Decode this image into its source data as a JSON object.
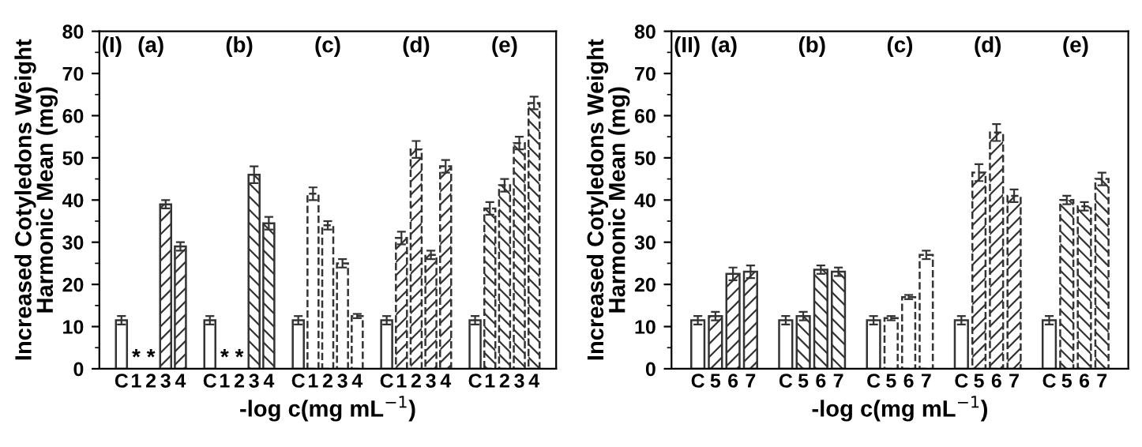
{
  "chart_data": [
    {
      "type": "bar",
      "xlabel": "-log c(mg mL$^{−1}$)",
      "ylabel": "Increased Cotyledons Weight\nHarmonic Mean (mg)",
      "ylim": [
        0,
        80
      ],
      "yticks": [
        0,
        10,
        20,
        30,
        40,
        50,
        60,
        70,
        80
      ],
      "grid": false,
      "categories": [
        "C",
        "1",
        "2",
        "3",
        "4",
        null,
        "C",
        "1",
        "2",
        "3",
        "4",
        null,
        "C",
        "1",
        "2",
        "3",
        "4",
        null,
        "C",
        "1",
        "2",
        "3",
        "4",
        null,
        "C",
        "1",
        "2",
        "3",
        "4"
      ],
      "series": [
        {
          "color": "#ffffff",
          "line_style": "solid",
          "values": [
            11.5,
            null,
            null,
            null,
            null,
            null,
            11.5,
            null,
            null,
            null,
            null,
            null,
            11.5,
            null,
            null,
            null,
            null,
            null,
            11.5,
            null,
            null,
            null,
            null,
            null,
            11.5,
            null,
            null,
            null,
            null
          ],
          "errors": [
            1,
            null,
            null,
            null,
            null,
            null,
            1,
            null,
            null,
            null,
            null,
            null,
            1,
            null,
            null,
            null,
            null,
            null,
            1,
            null,
            null,
            null,
            null,
            null,
            1,
            null,
            null,
            null,
            null
          ]
        },
        {
          "color": "#333333",
          "line_style": "solid",
          "values": [
            null,
            null,
            null,
            39,
            29,
            null,
            null,
            null,
            null,
            null,
            null,
            null,
            null,
            null,
            null,
            null,
            null,
            null,
            null,
            null,
            null,
            null,
            null,
            null,
            null,
            null,
            null,
            null,
            null
          ],
          "errors": [
            null,
            null,
            null,
            1,
            1,
            null,
            null,
            null,
            null,
            null,
            null,
            null,
            null,
            null,
            null,
            null,
            null,
            null,
            null,
            null,
            null,
            null,
            null,
            null,
            null,
            null,
            null,
            null,
            null
          ]
        },
        {
          "color": "#333333",
          "line_style": "solid",
          "values": [
            null,
            null,
            null,
            null,
            null,
            null,
            null,
            null,
            null,
            46,
            34.5,
            null,
            null,
            null,
            null,
            null,
            null,
            null,
            null,
            null,
            null,
            null,
            null,
            null,
            null,
            null,
            null,
            null,
            null
          ],
          "errors": [
            null,
            null,
            null,
            null,
            null,
            null,
            null,
            null,
            null,
            2,
            1.5,
            null,
            null,
            null,
            null,
            null,
            null,
            null,
            null,
            null,
            null,
            null,
            null,
            null,
            null,
            null,
            null,
            null,
            null
          ]
        },
        {
          "color": "#ffffff",
          "line_style": "dashed",
          "values": [
            null,
            null,
            null,
            null,
            null,
            null,
            null,
            null,
            null,
            null,
            null,
            null,
            null,
            41.5,
            34,
            25,
            12.5,
            null,
            null,
            null,
            null,
            null,
            null,
            null,
            null,
            null,
            null,
            null,
            null
          ],
          "errors": [
            null,
            null,
            null,
            null,
            null,
            null,
            null,
            null,
            null,
            null,
            null,
            null,
            null,
            1.5,
            1,
            1,
            0.5,
            null,
            null,
            null,
            null,
            null,
            null,
            null,
            null,
            null,
            null,
            null,
            null
          ]
        },
        {
          "color": "#333333",
          "line_style": "dashed",
          "values": [
            null,
            null,
            null,
            null,
            null,
            null,
            null,
            null,
            null,
            null,
            null,
            null,
            null,
            null,
            null,
            null,
            null,
            null,
            null,
            31,
            52,
            27,
            48,
            null,
            null,
            null,
            null,
            null,
            null
          ],
          "errors": [
            null,
            null,
            null,
            null,
            null,
            null,
            null,
            null,
            null,
            null,
            null,
            null,
            null,
            null,
            null,
            null,
            null,
            null,
            null,
            1.5,
            2,
            1,
            1.5,
            null,
            null,
            null,
            null,
            null,
            null
          ]
        },
        {
          "color": "#333333",
          "line_style": "dashed",
          "values": [
            null,
            null,
            null,
            null,
            null,
            null,
            null,
            null,
            null,
            null,
            null,
            null,
            null,
            null,
            null,
            null,
            null,
            null,
            null,
            null,
            null,
            null,
            null,
            null,
            null,
            38,
            43.5,
            53.5,
            63
          ],
          "errors": [
            null,
            null,
            null,
            null,
            null,
            null,
            null,
            null,
            null,
            null,
            null,
            null,
            null,
            null,
            null,
            null,
            null,
            null,
            null,
            null,
            null,
            null,
            null,
            null,
            null,
            1.5,
            1.5,
            1.5,
            1.5
          ]
        }
      ],
      "annotations": [
        "(I)",
        "(a)",
        "(b)",
        "(c)",
        "(d)",
        "(e)",
        "*",
        "*",
        "*",
        "*"
      ]
    },
    {
      "type": "bar",
      "xlabel": "-log c(mg mL$^{−1}$)",
      "ylabel": "Increased Cotyledons Weight\nHarmonic Mean (mg)",
      "ylim": [
        0,
        80
      ],
      "yticks": [
        0,
        10,
        20,
        30,
        40,
        50,
        60,
        70,
        80
      ],
      "grid": false,
      "categories": [
        "C",
        "5",
        "6",
        "7",
        null,
        "C",
        "5",
        "6",
        "7",
        null,
        "C",
        "5",
        "6",
        "7",
        null,
        "C",
        "5",
        "6",
        "7",
        null,
        "C",
        "5",
        "6",
        "7"
      ],
      "series": [
        {
          "color": "#ffffff",
          "line_style": "solid",
          "values": [
            11.5,
            null,
            null,
            null,
            null,
            11.5,
            null,
            null,
            null,
            null,
            11.5,
            null,
            null,
            null,
            null,
            11.5,
            null,
            null,
            null,
            null,
            11.5,
            null,
            null,
            null
          ],
          "errors": [
            1,
            null,
            null,
            null,
            null,
            1,
            null,
            null,
            null,
            null,
            1,
            null,
            null,
            null,
            null,
            1,
            null,
            null,
            null,
            null,
            1,
            null,
            null,
            null
          ]
        },
        {
          "color": "#333333",
          "line_style": "solid",
          "values": [
            null,
            12.5,
            22.5,
            23,
            null,
            null,
            null,
            null,
            null,
            null,
            null,
            null,
            null,
            null,
            null,
            null,
            null,
            null,
            null,
            null,
            null,
            null,
            null,
            null
          ],
          "errors": [
            null,
            1,
            1.5,
            1.5,
            null,
            null,
            null,
            null,
            null,
            null,
            null,
            null,
            null,
            null,
            null,
            null,
            null,
            null,
            null,
            null,
            null,
            null,
            null,
            null
          ]
        },
        {
          "color": "#333333",
          "line_style": "solid",
          "values": [
            null,
            null,
            null,
            null,
            null,
            null,
            12.5,
            23.5,
            23,
            null,
            null,
            null,
            null,
            null,
            null,
            null,
            null,
            null,
            null,
            null,
            null,
            null,
            null,
            null
          ],
          "errors": [
            null,
            null,
            null,
            null,
            null,
            null,
            1,
            1,
            1,
            null,
            null,
            null,
            null,
            null,
            null,
            null,
            null,
            null,
            null,
            null,
            null,
            null,
            null,
            null
          ]
        },
        {
          "color": "#ffffff",
          "line_style": "dashed",
          "values": [
            null,
            null,
            null,
            null,
            null,
            null,
            null,
            null,
            null,
            null,
            null,
            12,
            17,
            27,
            null,
            null,
            null,
            null,
            null,
            null,
            null,
            null,
            null,
            null
          ],
          "errors": [
            null,
            null,
            null,
            null,
            null,
            null,
            null,
            null,
            null,
            null,
            null,
            0.5,
            0.5,
            1,
            null,
            null,
            null,
            null,
            null,
            null,
            null,
            null,
            null,
            null
          ]
        },
        {
          "color": "#333333",
          "line_style": "dashed",
          "values": [
            null,
            null,
            null,
            null,
            null,
            null,
            null,
            null,
            null,
            null,
            null,
            null,
            null,
            null,
            null,
            null,
            46.5,
            56,
            41,
            null,
            null,
            null,
            null,
            null
          ],
          "errors": [
            null,
            null,
            null,
            null,
            null,
            null,
            null,
            null,
            null,
            null,
            null,
            null,
            null,
            null,
            null,
            null,
            2,
            2,
            1.5,
            null,
            null,
            null,
            null,
            null
          ]
        },
        {
          "color": "#333333",
          "line_style": "dashed",
          "values": [
            null,
            null,
            null,
            null,
            null,
            null,
            null,
            null,
            null,
            null,
            null,
            null,
            null,
            null,
            null,
            null,
            null,
            null,
            null,
            null,
            null,
            40,
            38.5,
            45
          ],
          "errors": [
            null,
            null,
            null,
            null,
            null,
            null,
            null,
            null,
            null,
            null,
            null,
            null,
            null,
            null,
            null,
            null,
            null,
            null,
            null,
            null,
            null,
            1,
            1,
            1.5
          ]
        }
      ],
      "annotations": [
        "(II)",
        "(a)",
        "(b)",
        "(c)",
        "(d)",
        "(e)"
      ]
    }
  ]
}
